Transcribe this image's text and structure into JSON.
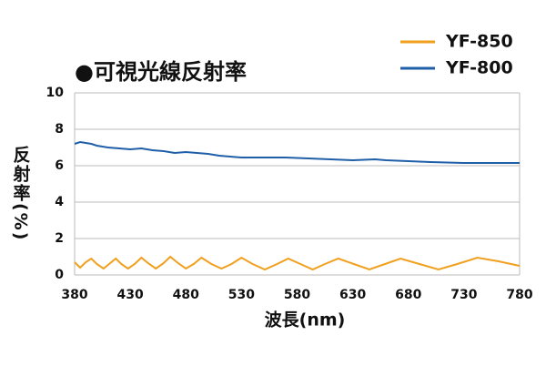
{
  "chart_data": {
    "type": "line",
    "title": "●可視光線反射率",
    "x_label": "波長(nm)",
    "y_label": "反射率(%)",
    "xlim": [
      380,
      780
    ],
    "xticks": [
      380,
      430,
      480,
      530,
      580,
      630,
      680,
      730,
      780
    ],
    "ylim": [
      0,
      10
    ],
    "yticks": [
      0,
      2,
      4,
      6,
      8,
      10
    ],
    "grid": true,
    "legend": "top-right",
    "series": [
      {
        "name": "YF-850",
        "color": "#f0a01e",
        "x": [
          380,
          385,
          390,
          395,
          400,
          406,
          411,
          417,
          422,
          428,
          434,
          440,
          446,
          453,
          460,
          466,
          473,
          480,
          487,
          494,
          503,
          512,
          521,
          530,
          540,
          551,
          562,
          572,
          583,
          594,
          605,
          617,
          631,
          645,
          659,
          673,
          690,
          707,
          724,
          742,
          761,
          780
        ],
        "values": [
          0.7,
          0.4,
          0.7,
          0.9,
          0.6,
          0.35,
          0.6,
          0.9,
          0.6,
          0.35,
          0.6,
          0.95,
          0.65,
          0.35,
          0.65,
          1.0,
          0.65,
          0.35,
          0.6,
          0.95,
          0.6,
          0.35,
          0.6,
          0.95,
          0.6,
          0.3,
          0.6,
          0.9,
          0.6,
          0.3,
          0.6,
          0.9,
          0.6,
          0.3,
          0.6,
          0.9,
          0.6,
          0.3,
          0.6,
          0.95,
          0.75,
          0.5
        ]
      },
      {
        "name": "YF-800",
        "color": "#1f5fa8",
        "x": [
          380,
          385,
          390,
          395,
          400,
          410,
          420,
          430,
          440,
          450,
          460,
          470,
          480,
          490,
          500,
          510,
          520,
          530,
          550,
          570,
          590,
          610,
          630,
          650,
          660,
          680,
          700,
          730,
          760,
          780
        ],
        "values": [
          7.2,
          7.3,
          7.25,
          7.2,
          7.1,
          7.0,
          6.95,
          6.9,
          6.95,
          6.85,
          6.8,
          6.7,
          6.75,
          6.7,
          6.65,
          6.55,
          6.5,
          6.45,
          6.45,
          6.45,
          6.4,
          6.35,
          6.3,
          6.35,
          6.3,
          6.25,
          6.2,
          6.15,
          6.15,
          6.15
        ]
      }
    ]
  }
}
